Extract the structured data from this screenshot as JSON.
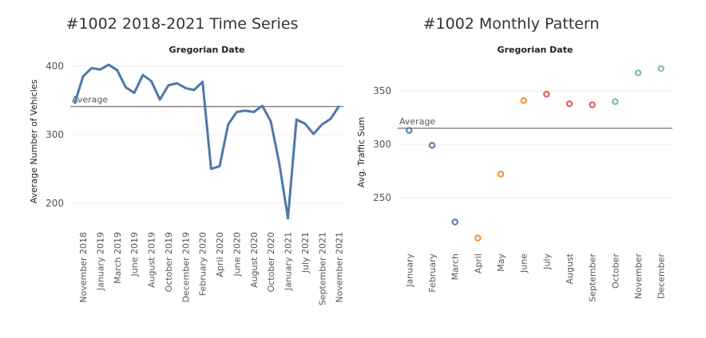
{
  "chart_data": [
    {
      "type": "line",
      "title": "#1002 2018-2021 Time Series",
      "x_label": "Gregorian Date",
      "y_label": "Average Number of Vehicles",
      "categories": [
        null,
        "November 2018",
        null,
        "January 2019",
        null,
        "March 2019",
        null,
        "June 2019",
        null,
        "August 2019",
        null,
        "October 2019",
        null,
        "December 2019",
        null,
        "February 2020",
        null,
        "April 2020",
        null,
        "June 2020",
        null,
        "August 2020",
        null,
        "October 2020",
        null,
        "January 2021",
        null,
        "July 2021",
        null,
        "September 2021",
        null,
        "November 2021"
      ],
      "series": [
        {
          "name": "Average Number of Vehicles",
          "color": "#4e79a7",
          "values": [
            345,
            385,
            397,
            395,
            402,
            394,
            369,
            361,
            387,
            378,
            351,
            372,
            375,
            368,
            365,
            377,
            250,
            254,
            315,
            333,
            335,
            333,
            342,
            319,
            257,
            178,
            322,
            316,
            301,
            315,
            323,
            342
          ]
        }
      ],
      "ylim": [
        165,
        415
      ],
      "yticks": [
        200,
        300,
        400
      ],
      "grid": true,
      "reference_line": {
        "label": "Average",
        "value": 341
      }
    },
    {
      "type": "scatter",
      "title": "#1002 Monthly Pattern",
      "x_label": "Gregorian Date",
      "y_label": "Avg. Traffic Sum",
      "categories": [
        "January",
        "February",
        "March",
        "April",
        "May",
        "June",
        "July",
        "August",
        "September",
        "October",
        "November",
        "December"
      ],
      "values": [
        313,
        299,
        227,
        212,
        272,
        341,
        347,
        338,
        337,
        340,
        367,
        371
      ],
      "colors": [
        "#4e79a7",
        "#4e79a7",
        "#4e79a7",
        "#f28e2b",
        "#f28e2b",
        "#f28e2b",
        "#e15759",
        "#e15759",
        "#e15759",
        "#76b7b2",
        "#76b7b2",
        "#76b7b2"
      ],
      "ylim": [
        202,
        383
      ],
      "yticks": [
        250,
        300,
        350
      ],
      "grid": true,
      "reference_line": {
        "label": "Average",
        "value": 315
      }
    }
  ]
}
